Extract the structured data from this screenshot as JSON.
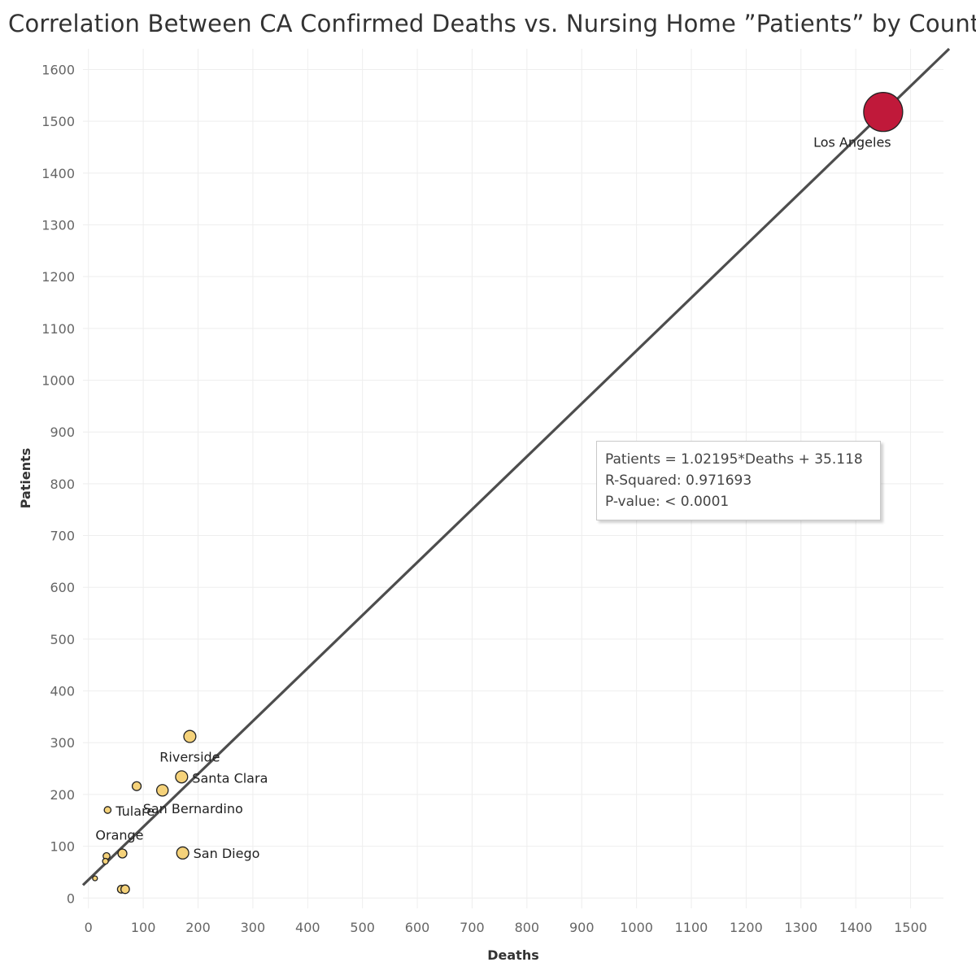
{
  "chart_data": {
    "type": "scatter",
    "title": "Correlation Between CA Confirmed Deaths vs. Nursing Home ”Patients” by County",
    "xlabel": "Deaths",
    "ylabel": "Patients",
    "xlim": [
      -10,
      1560
    ],
    "ylim": [
      -20,
      1640
    ],
    "x_ticks": [
      "0",
      "100",
      "200",
      "300",
      "400",
      "500",
      "600",
      "700",
      "800",
      "900",
      "1000",
      "1100",
      "1200",
      "1300",
      "1400",
      "1500"
    ],
    "y_ticks": [
      "0",
      "100",
      "200",
      "300",
      "400",
      "500",
      "600",
      "700",
      "800",
      "900",
      "1000",
      "1100",
      "1200",
      "1300",
      "1400",
      "1500",
      "1600"
    ],
    "grid": true,
    "trend_line": {
      "slope": 1.02195,
      "intercept": 35.118
    },
    "stats_box": {
      "equation": "Patients = 1.02195*Deaths + 35.118",
      "r_squared": "R-Squared: 0.971693",
      "p_value": "P-value: < 0.0001"
    },
    "points": [
      {
        "label": "Los Angeles",
        "x": 1450,
        "y": 1518,
        "size": 2300,
        "color": "#c0193a"
      },
      {
        "label": "Riverside",
        "x": 185,
        "y": 312,
        "size": 220,
        "color": "#f5d27a"
      },
      {
        "label": "Santa Clara",
        "x": 170,
        "y": 234,
        "size": 220,
        "color": "#f5d27a"
      },
      {
        "label": "",
        "x": 88,
        "y": 216,
        "size": 120,
        "color": "#f5d27a"
      },
      {
        "label": "San Bernardino",
        "x": 135,
        "y": 208,
        "size": 200,
        "color": "#f5d27a"
      },
      {
        "label": "Tulare",
        "x": 35,
        "y": 170,
        "size": 70,
        "color": "#f5d27a"
      },
      {
        "label": "San Diego",
        "x": 172,
        "y": 87,
        "size": 220,
        "color": "#f5d27a"
      },
      {
        "label": "",
        "x": 62,
        "y": 86,
        "size": 120,
        "color": "#f5d27a"
      },
      {
        "label": "Orange",
        "x": 33,
        "y": 81,
        "size": 70,
        "color": "#f5d27a"
      },
      {
        "label": "",
        "x": 31,
        "y": 71,
        "size": 50,
        "color": "#f5d27a"
      },
      {
        "label": "",
        "x": 12,
        "y": 38,
        "size": 35,
        "color": "#f5d27a"
      },
      {
        "label": "",
        "x": 60,
        "y": 17,
        "size": 90,
        "color": "#f5d27a"
      },
      {
        "label": "",
        "x": 67,
        "y": 17,
        "size": 110,
        "color": "#f5d27a"
      }
    ]
  }
}
